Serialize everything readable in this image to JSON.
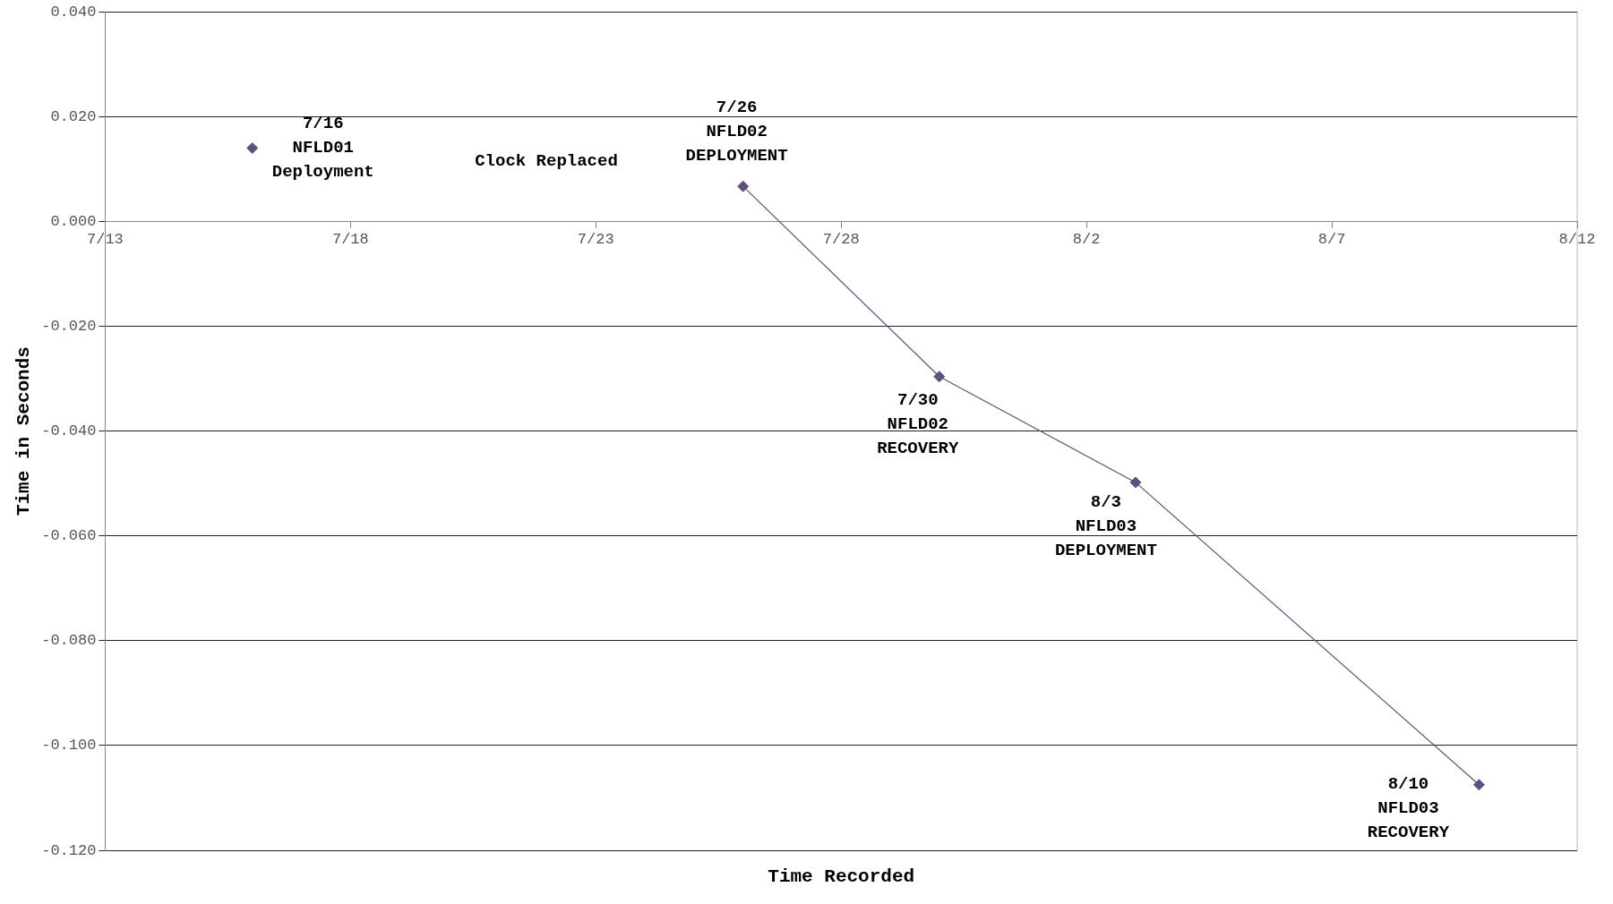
{
  "chart_data": {
    "type": "line",
    "xlabel": "Time Recorded",
    "ylabel": "Time in Seconds",
    "series": [
      {
        "type": "scatter",
        "color": "#5f5080",
        "x": [
          "--07-16"
        ],
        "values": [
          0.014
        ]
      },
      {
        "color": "#5f5080",
        "x": [
          "--07-26",
          "--07-30",
          "--08-03",
          "--08-10"
        ],
        "values": [
          0.0067,
          -0.0296,
          -0.0498,
          -0.1075
        ]
      }
    ],
    "xlim": [
      "--07-13",
      "--08-12"
    ],
    "xticks": [
      {
        "value": "--07-13",
        "label": "7/13"
      },
      {
        "value": "--07-18",
        "label": "7/18"
      },
      {
        "value": "--07-23",
        "label": "7/23"
      },
      {
        "value": "--07-28",
        "label": "7/28"
      },
      {
        "value": "--08-02",
        "label": "8/2"
      },
      {
        "value": "--08-07",
        "label": "8/7"
      },
      {
        "value": "--08-12",
        "label": "8/12"
      }
    ],
    "ylim": [
      -0.12,
      0.04
    ],
    "yticks": [
      {
        "value": -0.12,
        "label": "-0.120"
      },
      {
        "value": -0.1,
        "label": "-0.100"
      },
      {
        "value": -0.08,
        "label": "-0.080"
      },
      {
        "value": -0.06,
        "label": "-0.060"
      },
      {
        "value": -0.04,
        "label": "-0.040"
      },
      {
        "value": -0.02,
        "label": "-0.020"
      },
      {
        "value": 0,
        "label": "0.000"
      },
      {
        "value": 0.02,
        "label": "0.020"
      },
      {
        "value": 0.04,
        "label": "0.040"
      }
    ],
    "annotations": [
      {
        "text": "7/16\nNFLD01\nDeployment",
        "x": "--07-16",
        "y": 0.014
      },
      "Clock Replaced",
      {
        "text": "7/26\nNFLD02\nDEPLOYMENT",
        "x": "--07-26",
        "y": 0.0067
      },
      {
        "text": "7/30\nNFLD02\nRECOVERY",
        "x": "--07-30",
        "y": -0.0296
      },
      {
        "text": "8/3\nNFLD03\nDEPLOYMENT",
        "x": "--08-03",
        "y": -0.0498
      },
      {
        "text": "8/10\nNFLD03\nRECOVERY",
        "x": "--08-10",
        "y": -0.1075
      }
    ],
    "grid": "y",
    "legend": false,
    "marker": "diamond",
    "line_style": "solid"
  }
}
